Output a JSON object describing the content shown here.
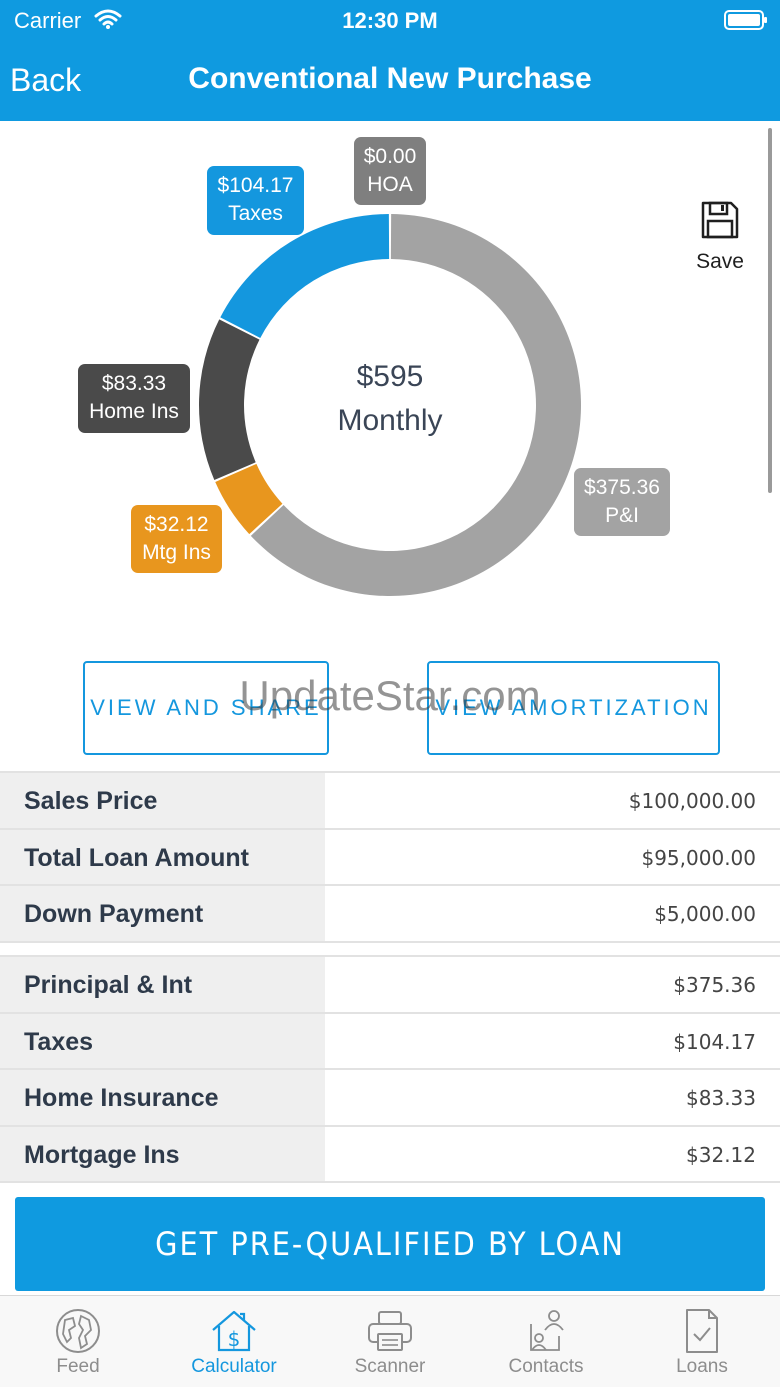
{
  "status_bar": {
    "carrier": "Carrier",
    "time": "12:30 PM"
  },
  "header": {
    "back_label": "Back",
    "title": "Conventional New Purchase"
  },
  "chart_data": {
    "type": "pie",
    "style": "donut",
    "center_amount": "$595",
    "center_label": "Monthly",
    "slices": [
      {
        "name": "P&I",
        "label": "$375.36",
        "value": 375.36,
        "color": "#a3a3a3"
      },
      {
        "name": "Mtg Ins",
        "label": "$32.12",
        "value": 32.12,
        "color": "#e8961e"
      },
      {
        "name": "Home Ins",
        "label": "$83.33",
        "value": 83.33,
        "color": "#4a4a4a"
      },
      {
        "name": "Taxes",
        "label": "$104.17",
        "value": 104.17,
        "color": "#1497de"
      },
      {
        "name": "HOA",
        "label": "$0.00",
        "value": 0.0,
        "color": "#7f7f7f"
      }
    ]
  },
  "save": {
    "label": "Save"
  },
  "buttons": {
    "view_share": "VIEW AND SHARE",
    "amortization": "VIEW AMORTIZATION"
  },
  "watermark": "UpdateStar.com",
  "summary_rows": [
    {
      "label": "Sales Price",
      "value": "$100,000.00"
    },
    {
      "label": "Total Loan Amount",
      "value": "$95,000.00"
    },
    {
      "label": "Down Payment",
      "value": "$5,000.00"
    }
  ],
  "payment_rows": [
    {
      "label": "Principal & Int",
      "value": "$375.36"
    },
    {
      "label": "Taxes",
      "value": "$104.17"
    },
    {
      "label": "Home Insurance",
      "value": "$83.33"
    },
    {
      "label": "Mortgage Ins",
      "value": "$32.12"
    }
  ],
  "prequal_label": "GET PRE-QUALIFIED BY LOAN",
  "tabs": [
    {
      "label": "Feed",
      "icon": "globe-icon",
      "active": false
    },
    {
      "label": "Calculator",
      "icon": "house-dollar-icon",
      "active": true
    },
    {
      "label": "Scanner",
      "icon": "printer-icon",
      "active": false
    },
    {
      "label": "Contacts",
      "icon": "contacts-icon",
      "active": false
    },
    {
      "label": "Loans",
      "icon": "document-check-icon",
      "active": false
    }
  ],
  "colors": {
    "brand_blue": "#0f9ae0",
    "accent_blue": "#1497de",
    "inactive_gray": "#8d8d8d"
  }
}
